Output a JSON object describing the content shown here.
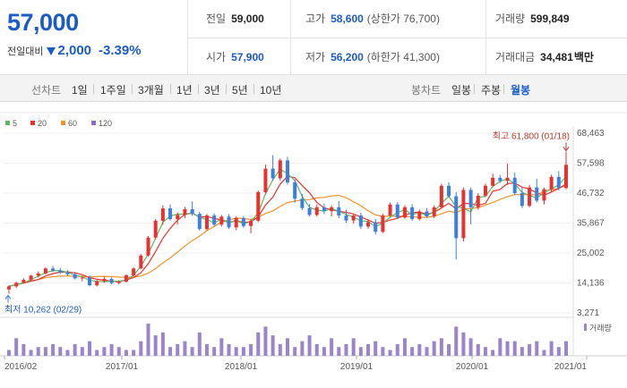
{
  "summary": {
    "current_price": "57,000",
    "change_label": "전일대비",
    "change_amount": "2,000",
    "change_percent": "-3.39%",
    "stats": {
      "prev_close_label": "전일",
      "prev_close": "59,000",
      "high_label": "고가",
      "high": "58,600",
      "upper_limit": "(상한가 76,700)",
      "volume_label": "거래량",
      "volume": "599,849",
      "open_label": "시가",
      "open": "57,900",
      "low_label": "저가",
      "low": "56,200",
      "lower_limit": "(하한가 41,300)",
      "trade_value_label": "거래대금",
      "trade_value": "34,481",
      "trade_value_unit": "백만"
    }
  },
  "toolbar": {
    "line_chart_label": "선차트",
    "periods": [
      "1일",
      "1주일",
      "3개월",
      "1년",
      "3년",
      "5년",
      "10년"
    ],
    "candle_chart_label": "봉차트",
    "candle_types": [
      "일봉",
      "주봉",
      "월봉"
    ],
    "active_candle": "월봉"
  },
  "colors": {
    "accent": "#1a5bc4",
    "up": "#e8322f",
    "down": "#3b7fe0",
    "ma5": "#5cb85c",
    "ma20": "#e8322f",
    "ma60": "#f0932b",
    "ma120": "#8e6bc7",
    "volume": "#9b85c9"
  },
  "chart_data": {
    "type": "candlestick",
    "legend": [
      {
        "name": "5",
        "color": "#5cb85c"
      },
      {
        "name": "20",
        "color": "#e8322f"
      },
      {
        "name": "60",
        "color": "#f0932b"
      },
      {
        "name": "120",
        "color": "#8e6bc7"
      }
    ],
    "y_ticks": [
      "68,463",
      "57,598",
      "46,732",
      "35,867",
      "25,002",
      "14,136",
      "3,271"
    ],
    "ylim": [
      3271,
      68463
    ],
    "x_ticks": [
      "2016/02",
      "2017/01",
      "2018/01",
      "2019/01",
      "2020/01",
      "2021/01"
    ],
    "high_annotation": "최고 61,800 (01/18)",
    "low_annotation": "최저 10,262 (02/29)",
    "volume_label": "거래량",
    "candles": [
      [
        11800,
        13400,
        10262,
        12900
      ],
      [
        12900,
        14600,
        12300,
        14200
      ],
      [
        14200,
        15800,
        13800,
        15300
      ],
      [
        15300,
        17100,
        14900,
        16800
      ],
      [
        16800,
        18300,
        16100,
        17600
      ],
      [
        17600,
        19800,
        17200,
        19400
      ],
      [
        19400,
        20300,
        18200,
        18600
      ],
      [
        18600,
        19600,
        17400,
        17900
      ],
      [
        17900,
        18800,
        16800,
        17300
      ],
      [
        17300,
        18100,
        15400,
        15800
      ],
      [
        15800,
        16700,
        14700,
        16100
      ],
      [
        16100,
        16900,
        12900,
        13300
      ],
      [
        13300,
        15200,
        12800,
        14800
      ],
      [
        14800,
        16400,
        14200,
        15600
      ],
      [
        15600,
        16200,
        13700,
        14100
      ],
      [
        14100,
        15100,
        13700,
        14600
      ],
      [
        14600,
        17300,
        14300,
        16900
      ],
      [
        16900,
        19800,
        16500,
        19400
      ],
      [
        19400,
        24600,
        19200,
        24100
      ],
      [
        24100,
        31200,
        23700,
        30600
      ],
      [
        30600,
        37400,
        29900,
        36700
      ],
      [
        36700,
        42300,
        35200,
        41200
      ],
      [
        41200,
        42600,
        36700,
        37300
      ],
      [
        37300,
        39700,
        35300,
        38800
      ],
      [
        38800,
        41700,
        37600,
        40900
      ],
      [
        40900,
        43700,
        38600,
        39200
      ],
      [
        39200,
        39900,
        33100,
        33700
      ],
      [
        33700,
        39200,
        33200,
        38600
      ],
      [
        38600,
        39400,
        34700,
        35300
      ],
      [
        35300,
        38800,
        34600,
        38200
      ],
      [
        38200,
        39100,
        33700,
        34300
      ],
      [
        34300,
        38300,
        33300,
        37700
      ],
      [
        37700,
        38400,
        34200,
        34800
      ],
      [
        34800,
        37400,
        32100,
        36700
      ],
      [
        36700,
        47700,
        36200,
        47100
      ],
      [
        47100,
        57100,
        46400,
        55600
      ],
      [
        55600,
        60500,
        51300,
        52100
      ],
      [
        52100,
        59300,
        51200,
        58600
      ],
      [
        58600,
        59900,
        49800,
        50600
      ],
      [
        50600,
        51700,
        43300,
        44700
      ],
      [
        44700,
        46400,
        40600,
        41300
      ],
      [
        41300,
        42800,
        38200,
        38800
      ],
      [
        38800,
        42600,
        38200,
        41600
      ],
      [
        41600,
        42900,
        39100,
        40200
      ],
      [
        40200,
        42300,
        38300,
        41600
      ],
      [
        41600,
        43900,
        37600,
        38600
      ],
      [
        38600,
        40700,
        35900,
        36800
      ],
      [
        36800,
        39200,
        35600,
        38600
      ],
      [
        38600,
        39600,
        33700,
        34600
      ],
      [
        34600,
        37200,
        33800,
        36200
      ],
      [
        36200,
        37300,
        31800,
        32700
      ],
      [
        32700,
        39200,
        32200,
        38600
      ],
      [
        38600,
        43300,
        38200,
        42600
      ],
      [
        42600,
        43400,
        37300,
        37900
      ],
      [
        37900,
        42300,
        37300,
        41600
      ],
      [
        41600,
        42700,
        36700,
        37300
      ],
      [
        37300,
        40700,
        36900,
        40100
      ],
      [
        40100,
        41300,
        37700,
        38300
      ],
      [
        38300,
        42300,
        37700,
        41600
      ],
      [
        41600,
        50200,
        41100,
        49400
      ],
      [
        49400,
        50700,
        45100,
        45600
      ],
      [
        45600,
        47100,
        22600,
        30400
      ],
      [
        30400,
        48700,
        29200,
        47900
      ],
      [
        47900,
        48700,
        35400,
        41600
      ],
      [
        41600,
        46700,
        40700,
        45800
      ],
      [
        45800,
        50200,
        45300,
        49400
      ],
      [
        49400,
        53700,
        48900,
        52300
      ],
      [
        52300,
        53300,
        50400,
        51200
      ],
      [
        51200,
        57400,
        49700,
        52300
      ],
      [
        52300,
        54100,
        46100,
        46700
      ],
      [
        46700,
        48800,
        41300,
        42100
      ],
      [
        42100,
        49700,
        41600,
        48800
      ],
      [
        48800,
        51900,
        43300,
        44000
      ],
      [
        44000,
        48700,
        42600,
        48100
      ],
      [
        48100,
        53400,
        47200,
        52600
      ],
      [
        52600,
        54700,
        47700,
        48600
      ],
      [
        48600,
        61800,
        48100,
        57000
      ]
    ],
    "volumes": [
      2,
      6,
      4,
      2,
      3,
      3,
      4,
      3,
      2,
      4,
      3,
      5,
      2,
      3,
      4,
      3,
      2,
      2,
      5,
      11,
      7,
      8,
      3,
      4,
      5,
      3,
      8,
      4,
      3,
      6,
      4,
      3,
      3,
      4,
      8,
      10,
      7,
      4,
      6,
      3,
      5,
      7,
      4,
      3,
      6,
      3,
      4,
      6,
      3,
      4,
      5,
      3,
      2,
      4,
      6,
      3,
      4,
      3,
      5,
      6,
      4,
      10,
      8,
      6,
      4,
      3,
      2,
      6,
      5,
      5,
      3,
      4,
      5,
      2,
      5,
      3,
      5
    ]
  }
}
